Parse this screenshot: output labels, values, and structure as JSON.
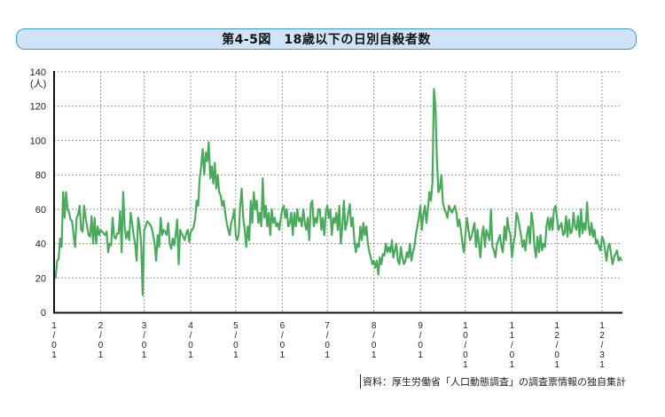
{
  "title": "第4-5図　18歳以下の日別自殺者数",
  "source": "資料：厚生労働省「人口動態調査」の調査票情報の独自集計",
  "colors": {
    "line": "#4aaa5c",
    "title_fill": "#cfe4f6",
    "title_border": "#3a9ad9",
    "grid": "#9a9a9a",
    "axis": "#111111"
  },
  "chart_data": {
    "type": "line",
    "title": "第4-5図　18歳以下の日別自殺者数",
    "xlabel": "",
    "ylabel": "(人)",
    "ylim": [
      0,
      140
    ],
    "yticks": [
      0,
      20,
      40,
      60,
      80,
      100,
      120,
      140
    ],
    "grid": true,
    "legend": null,
    "x_tick_labels": [
      "1/01",
      "2/01",
      "3/01",
      "4/01",
      "5/01",
      "6/01",
      "7/01",
      "8/01",
      "9/01",
      "10/01",
      "11/01",
      "12/01",
      "12/31"
    ],
    "x_tick_day_index": [
      0,
      31,
      60,
      91,
      121,
      152,
      182,
      213,
      244,
      274,
      305,
      335,
      365
    ],
    "series": [
      {
        "name": "18歳以下の日別自殺者数",
        "values": [
          23,
          20,
          30,
          31,
          43,
          38,
          70,
          55,
          70,
          60,
          58,
          54,
          53,
          45,
          38,
          55,
          57,
          62,
          48,
          47,
          62,
          55,
          50,
          45,
          44,
          56,
          40,
          55,
          40,
          50,
          45,
          48,
          47,
          46,
          45,
          47,
          35,
          40,
          39,
          55,
          44,
          43,
          46,
          46,
          59,
          35,
          70,
          50,
          43,
          47,
          42,
          58,
          52,
          45,
          40,
          30,
          55,
          50,
          40,
          10,
          48,
          50,
          53,
          52,
          51,
          49,
          45,
          40,
          30,
          45,
          38,
          55,
          45,
          48,
          47,
          45,
          52,
          40,
          37,
          43,
          39,
          45,
          54,
          28,
          48,
          46,
          44,
          42,
          46,
          48,
          41,
          47,
          48,
          50,
          55,
          65,
          62,
          78,
          85,
          95,
          80,
          93,
          88,
          99,
          78,
          85,
          75,
          87,
          72,
          80,
          70,
          68,
          62,
          65,
          58,
          52,
          48,
          45,
          52,
          55,
          60,
          45,
          42,
          46,
          62,
          72,
          55,
          48,
          38,
          50,
          42,
          65,
          52,
          70,
          60,
          65,
          52,
          58,
          50,
          78,
          55,
          62,
          50,
          58,
          45,
          60,
          52,
          55,
          50,
          52,
          48,
          55,
          60,
          62,
          55,
          60,
          50,
          52,
          58,
          45,
          58,
          50,
          60,
          53,
          55,
          50,
          60,
          52,
          48,
          55,
          42,
          63,
          65,
          50,
          55,
          52,
          60,
          60,
          48,
          55,
          45,
          58,
          62,
          55,
          60,
          45,
          55,
          52,
          58,
          48,
          62,
          40,
          50,
          65,
          48,
          52,
          58,
          63,
          50,
          55,
          42,
          35,
          40,
          38,
          50,
          42,
          52,
          45,
          50,
          40,
          35,
          32,
          28,
          30,
          26,
          30,
          22,
          32,
          28,
          34,
          33,
          40,
          35,
          38,
          35,
          42,
          32,
          36,
          40,
          30,
          28,
          38,
          32,
          28,
          30,
          35,
          32,
          40,
          30,
          35,
          38,
          45,
          50,
          55,
          62,
          48,
          57,
          62,
          52,
          60,
          70,
          65,
          75,
          130,
          120,
          90,
          70,
          72,
          80,
          64,
          60,
          58,
          55,
          62,
          60,
          58,
          60,
          62,
          58,
          50,
          54,
          48,
          40,
          35,
          45,
          55,
          48,
          42,
          44,
          48,
          52,
          38,
          48,
          40,
          32,
          45,
          50,
          38,
          48,
          45,
          42,
          60,
          38,
          36,
          32,
          40,
          42,
          45,
          38,
          35,
          50,
          42,
          55,
          48,
          45,
          32,
          40,
          45,
          58,
          55,
          50,
          45,
          38,
          42,
          36,
          45,
          50,
          40,
          58,
          52,
          38,
          32,
          44,
          35,
          45,
          36,
          40,
          38,
          50,
          55,
          48,
          55,
          48,
          60,
          62,
          55,
          48,
          50,
          52,
          45,
          46,
          56,
          44,
          54,
          46,
          47,
          58,
          50,
          48,
          56,
          44,
          60,
          46,
          52,
          48,
          64,
          50,
          45,
          52,
          44,
          48,
          40,
          42,
          38,
          36,
          44,
          42,
          36,
          30,
          38,
          40,
          34,
          28,
          32,
          34,
          36,
          30,
          32,
          30
        ]
      }
    ]
  }
}
